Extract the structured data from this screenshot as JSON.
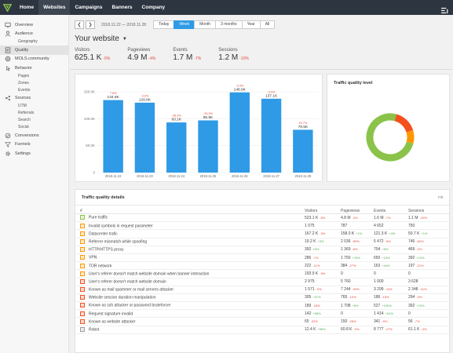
{
  "nav": {
    "items": [
      {
        "label": "Home",
        "active": false
      },
      {
        "label": "Websites",
        "active": true
      },
      {
        "label": "Campaigns",
        "active": false
      },
      {
        "label": "Banners",
        "active": false
      },
      {
        "label": "Company",
        "active": false
      }
    ]
  },
  "sidebar": {
    "items": [
      {
        "label": "Overview",
        "icon": "monitor-icon",
        "active": false,
        "subs": []
      },
      {
        "label": "Audience",
        "icon": "person-icon",
        "active": false,
        "subs": [
          "Geography"
        ]
      },
      {
        "label": "Quality",
        "icon": "quality-icon",
        "active": true,
        "subs": []
      },
      {
        "label": "MOLS.community",
        "icon": "community-icon",
        "active": false,
        "subs": []
      },
      {
        "label": "Behavior",
        "icon": "behavior-icon",
        "active": false,
        "subs": [
          "Pages",
          "Zones",
          "Events"
        ]
      },
      {
        "label": "Sources",
        "icon": "sources-icon",
        "active": false,
        "subs": [
          "UTM",
          "Referrals",
          "Search",
          "Social"
        ]
      },
      {
        "label": "Conversions",
        "icon": "conversions-icon",
        "active": false,
        "subs": []
      },
      {
        "label": "Funnels",
        "icon": "funnel-icon",
        "active": false,
        "subs": []
      },
      {
        "label": "Settings",
        "icon": "gear-icon",
        "active": false,
        "subs": []
      }
    ]
  },
  "toolbar": {
    "date_range": "2018.11.22 — 2018.11.28",
    "periods": [
      {
        "label": "Today",
        "active": false
      },
      {
        "label": "Week",
        "active": true
      },
      {
        "label": "Month",
        "active": false
      },
      {
        "label": "3 months",
        "active": false
      },
      {
        "label": "Year",
        "active": false
      },
      {
        "label": "All",
        "active": false
      }
    ]
  },
  "site": {
    "title": "Your website"
  },
  "metrics": [
    {
      "label": "Visitors",
      "value": "625.1 K",
      "change": "-5%"
    },
    {
      "label": "Pageviews",
      "value": "4.9 M",
      "change": "-4%"
    },
    {
      "label": "Events",
      "value": "1.7 M",
      "change": "-7%"
    },
    {
      "label": "Sessions",
      "value": "1.2 M",
      "change": "-10%"
    }
  ],
  "colors": {
    "bar": "#2f9ae6",
    "donut_green": "#8bc34a",
    "donut_orange": "#ff9800",
    "donut_red": "#f4511e",
    "positive": "#4caf50",
    "negative": "#e24b3b"
  },
  "chart_data": [
    {
      "type": "bar",
      "categories": [
        "2018.11.22",
        "2018.11.23",
        "2018.11.24",
        "2018.11.25",
        "2018.11.26",
        "2018.11.27",
        "2018.11.28"
      ],
      "values": [
        134600,
        129800,
        93100,
        96900,
        148900,
        137100,
        79500
      ],
      "data_labels": [
        "134.6K",
        "129.8K",
        "93.1K",
        "96.9K",
        "148.9K",
        "137.1K",
        "79.5K"
      ],
      "change_labels": [
        "7.8%",
        "-3.6%",
        "-28.3%",
        "-25.3%",
        "-0.4%",
        "-3.3%",
        "15.7%"
      ],
      "ylim": [
        0,
        150000
      ],
      "yticks": [
        0,
        50000,
        100000,
        150000
      ],
      "ytick_labels": [
        "0",
        "50.0K",
        "100.0K",
        "150.0K"
      ],
      "grid": true
    },
    {
      "type": "pie",
      "title": "Traffic quality level",
      "values": [
        0.75,
        0.09,
        0.16
      ],
      "colors": [
        "#8bc34a",
        "#ff9800",
        "#f4511e"
      ]
    }
  ],
  "quality_table": {
    "title": "Traffic quality details",
    "filter_label": "Filt",
    "headers": [
      "#",
      "Visitors",
      "Pageviews",
      "Events",
      "Sessions"
    ],
    "rows": [
      {
        "name": "Pure traffic",
        "color": "#8bc34a",
        "visitors": "523.1 K",
        "v_chg": "-5%",
        "pageviews": "4.8 M",
        "p_chg": "-4%",
        "events": "1.6 M",
        "e_chg": "-7%",
        "sessions": "1.1 M",
        "s_chg": "-10%"
      },
      {
        "name": "Invalid symbols in request parameter",
        "color": "#ff9800",
        "visitors": "1 075",
        "v_chg": "",
        "pageviews": "787",
        "p_chg": "",
        "events": "4 652",
        "e_chg": "",
        "sessions": "750",
        "s_chg": ""
      },
      {
        "name": "Datacenter trafic",
        "color": "#ff9800",
        "visitors": "167.2 K",
        "v_chg": "-3%",
        "pageviews": "158.0 K",
        "p_chg": "+1%",
        "events": "121.3 K",
        "e_chg": "+4%",
        "sessions": "50.7 K",
        "s_chg": "+1%"
      },
      {
        "name": "Referrer mismatch while spoofing",
        "color": "#ff9800",
        "visitors": "19.2 K",
        "v_chg": "+3%",
        "pageviews": "2 036",
        "p_chg": "-89%",
        "events": "5 472",
        "e_chg": "-9%",
        "sessions": "746",
        "s_chg": "-60%"
      },
      {
        "name": "HTTP/HTTPS proxy",
        "color": "#ff9800",
        "visitors": "392",
        "v_chg": "+6%",
        "pageviews": "1 369",
        "p_chg": "-8%",
        "events": "704",
        "e_chg": "+8%",
        "sessions": "469",
        "s_chg": "-2%"
      },
      {
        "name": "VPN",
        "color": "#ff9800",
        "visitors": "286",
        "v_chg": "-7%",
        "pageviews": "1 750",
        "p_chg": "+15%",
        "events": "650",
        "e_chg": "+15%",
        "sessions": "392",
        "s_chg": "+13%"
      },
      {
        "name": "TOR network",
        "color": "#ff9800",
        "visitors": "222",
        "v_chg": "-11%",
        "pageviews": "384",
        "p_chg": "-27%",
        "events": "163",
        "e_chg": "+44%",
        "sessions": "197",
        "s_chg": "-21%"
      },
      {
        "name": "User's referer doesn't match website domain when banner interaction",
        "color": "#ff9800",
        "visitors": "193.9 K",
        "v_chg": "-9%",
        "pageviews": "0",
        "p_chg": "",
        "events": "0",
        "e_chg": "",
        "sessions": "0",
        "s_chg": ""
      },
      {
        "name": "User's referer doesn't match website domain",
        "color": "#f4511e",
        "visitors": "2 975",
        "v_chg": "",
        "pageviews": "5 760",
        "p_chg": "",
        "events": "1 000",
        "e_chg": "",
        "sessions": "3 628",
        "s_chg": ""
      },
      {
        "name": "Known as mail spammer or mail servers attacker",
        "color": "#f4511e",
        "visitors": "1 571",
        "v_chg": "-9%",
        "pageviews": "7 244",
        "p_chg": "-39%",
        "events": "3 299",
        "e_chg": "-12%",
        "sessions": "2 348",
        "s_chg": "-11%"
      },
      {
        "name": "Website session duration manipulation",
        "color": "#f4511e",
        "visitors": "305",
        "v_chg": "+37%",
        "pageviews": "765",
        "p_chg": "-10%",
        "events": "186",
        "e_chg": "-15%",
        "sessions": "294",
        "s_chg": "-3%"
      },
      {
        "name": "Known as ssh attacker or password bruteforcer",
        "color": "#f4511e",
        "visitors": "189",
        "v_chg": "-18%",
        "pageviews": "1 798",
        "p_chg": "+8%",
        "events": "527",
        "e_chg": "+100%",
        "sessions": "392",
        "s_chg": "+15%"
      },
      {
        "name": "Request signature invalid",
        "color": "#f4511e",
        "visitors": "142",
        "v_chg": "+58%",
        "pageviews": "0",
        "p_chg": "",
        "events": "1 414",
        "e_chg": "+61%",
        "sessions": "0",
        "s_chg": ""
      },
      {
        "name": "Known as website attacker",
        "color": "#f4511e",
        "visitors": "65",
        "v_chg": "-32%",
        "pageviews": "150",
        "p_chg": "-28%",
        "events": "341",
        "e_chg": "-9%",
        "sessions": "56",
        "s_chg": "-7%"
      },
      {
        "name": "Robot",
        "color": "#9e9e9e",
        "visitors": "12.4 K",
        "v_chg": "+55%",
        "pageviews": "60.8 K",
        "p_chg": "-9%",
        "events": "8 777",
        "e_chg": "-27%",
        "sessions": "61.1 K",
        "s_chg": "-4%"
      }
    ]
  }
}
